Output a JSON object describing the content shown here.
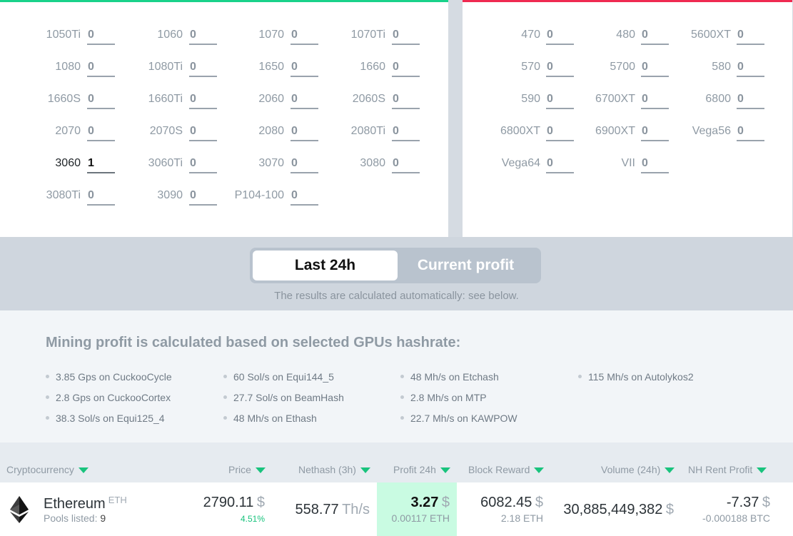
{
  "nvidia_gpus": [
    {
      "label": "1050Ti",
      "count": "0"
    },
    {
      "label": "1060",
      "count": "0"
    },
    {
      "label": "1070",
      "count": "0"
    },
    {
      "label": "1070Ti",
      "count": "0"
    },
    {
      "label": "1080",
      "count": "0"
    },
    {
      "label": "1080Ti",
      "count": "0"
    },
    {
      "label": "1650",
      "count": "0"
    },
    {
      "label": "1660",
      "count": "0"
    },
    {
      "label": "1660S",
      "count": "0"
    },
    {
      "label": "1660Ti",
      "count": "0"
    },
    {
      "label": "2060",
      "count": "0"
    },
    {
      "label": "2060S",
      "count": "0"
    },
    {
      "label": "2070",
      "count": "0"
    },
    {
      "label": "2070S",
      "count": "0"
    },
    {
      "label": "2080",
      "count": "0"
    },
    {
      "label": "2080Ti",
      "count": "0"
    },
    {
      "label": "3060",
      "count": "1"
    },
    {
      "label": "3060Ti",
      "count": "0"
    },
    {
      "label": "3070",
      "count": "0"
    },
    {
      "label": "3080",
      "count": "0"
    },
    {
      "label": "3080Ti",
      "count": "0"
    },
    {
      "label": "3090",
      "count": "0"
    },
    {
      "label": "P104-100",
      "count": "0"
    }
  ],
  "amd_gpus": [
    {
      "label": "470",
      "count": "0"
    },
    {
      "label": "480",
      "count": "0"
    },
    {
      "label": "5600XT",
      "count": "0"
    },
    {
      "label": "570",
      "count": "0"
    },
    {
      "label": "5700",
      "count": "0"
    },
    {
      "label": "580",
      "count": "0"
    },
    {
      "label": "590",
      "count": "0"
    },
    {
      "label": "6700XT",
      "count": "0"
    },
    {
      "label": "6800",
      "count": "0"
    },
    {
      "label": "6800XT",
      "count": "0"
    },
    {
      "label": "6900XT",
      "count": "0"
    },
    {
      "label": "Vega56",
      "count": "0"
    },
    {
      "label": "Vega64",
      "count": "0"
    },
    {
      "label": "VII",
      "count": "0"
    }
  ],
  "toggle": {
    "last24": "Last 24h",
    "current": "Current profit",
    "note": "The results are calculated automatically: see below."
  },
  "hashrate": {
    "title": "Mining profit is calculated based on selected GPUs hashrate:",
    "items": [
      "3.85 Gps on CuckooCycle",
      "2.8 Gps on CuckooCortex",
      "38.3 Sol/s on Equi125_4",
      "60 Sol/s on Equi144_5",
      "27.7 Sol/s on BeamHash",
      "48 Mh/s on Ethash",
      "48 Mh/s on Etchash",
      "2.8 Mh/s on MTP",
      "22.7 Mh/s on KAWPOW",
      "115 Mh/s on Autolykos2"
    ]
  },
  "table": {
    "headers": {
      "crypto": "Cryptocurrency",
      "price": "Price",
      "nethash": "Nethash (3h)",
      "profit": "Profit 24h",
      "block": "Block Reward",
      "volume": "Volume (24h)",
      "nh": "NH Rent Profit"
    },
    "row": {
      "name": "Ethereum",
      "symbol": "ETH",
      "pools_label": "Pools listed:",
      "pools_count": "9",
      "price": "2790.11",
      "price_unit": "$",
      "price_change": "4.51%",
      "nethash": "558.77",
      "nethash_unit": "Th/s",
      "profit": "3.27",
      "profit_unit": "$",
      "profit_coin": "0.00117 ETH",
      "block": "6082.45",
      "block_unit": "$",
      "block_coin": "2.18 ETH",
      "volume": "30,885,449,382",
      "volume_unit": "$",
      "nh": "-7.37",
      "nh_unit": "$",
      "nh_btc": "-0.000188 BTC"
    }
  },
  "colors": {
    "nvidia_accent": "#19d28a",
    "amd_accent": "#ef2a51",
    "sort_arrow": "#19c37d",
    "profit_highlight": "#c9fbe2"
  }
}
